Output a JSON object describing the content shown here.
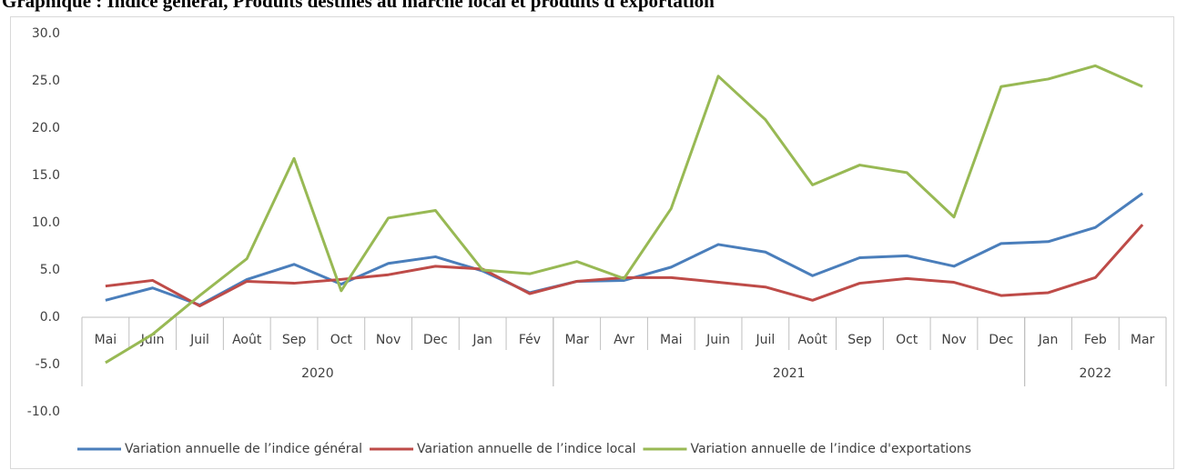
{
  "chart_data": {
    "type": "line",
    "title": "Graphique : Indice général, Produits destinés au marché local et produits d'exportation",
    "categories": [
      "Mai",
      "Juin",
      "Juil",
      "Août",
      "Sep",
      "Oct",
      "Nov",
      "Dec",
      "Jan",
      "Fév",
      "Mar",
      "Avr",
      "Mai",
      "Juin",
      "Juil",
      "Août",
      "Sep",
      "Oct",
      "Nov",
      "Dec",
      "Jan",
      "Feb",
      "Mar"
    ],
    "category_groups": [
      {
        "label": "2020",
        "count": 10
      },
      {
        "label": "2021",
        "count": 10
      },
      {
        "label": "2022",
        "count": 3
      }
    ],
    "series": [
      {
        "name": "Variation annuelle de l’indice général",
        "color": "#4a7ebb",
        "values": [
          1.8,
          3.1,
          1.3,
          4.0,
          5.6,
          3.5,
          5.7,
          6.4,
          4.9,
          2.6,
          3.8,
          3.9,
          5.3,
          7.7,
          6.9,
          4.4,
          6.3,
          6.5,
          5.4,
          7.8,
          8.0,
          9.5,
          13.1
        ]
      },
      {
        "name": "Variation annuelle de l’indice local",
        "color": "#be4b48",
        "values": [
          3.3,
          3.9,
          1.2,
          3.8,
          3.6,
          4.0,
          4.5,
          5.4,
          5.1,
          2.5,
          3.8,
          4.2,
          4.2,
          3.7,
          3.2,
          1.8,
          3.6,
          4.1,
          3.7,
          2.3,
          2.6,
          4.2,
          9.8
        ]
      },
      {
        "name": "Variation annuelle de l’indice d'exportations",
        "color": "#98b954",
        "values": [
          -4.8,
          -1.8,
          2.3,
          6.2,
          16.8,
          2.8,
          10.5,
          11.3,
          5.0,
          4.6,
          5.9,
          4.1,
          11.5,
          25.5,
          20.9,
          14.0,
          16.1,
          15.3,
          10.6,
          24.4,
          25.2,
          26.6,
          24.4
        ]
      }
    ],
    "ylim": [
      -10,
      30
    ],
    "yticks": [
      {
        "value": -10,
        "label": "-10.0"
      },
      {
        "value": -5,
        "label": "-5.0"
      },
      {
        "value": 0,
        "label": "0.0"
      },
      {
        "value": 5,
        "label": "5.0"
      },
      {
        "value": 10,
        "label": "10.0"
      },
      {
        "value": 15,
        "label": "15.0"
      },
      {
        "value": 20,
        "label": "20.0"
      },
      {
        "value": 25,
        "label": "25.0"
      },
      {
        "value": 30,
        "label": "30.0"
      }
    ],
    "grid": false,
    "legend": "bottom"
  }
}
